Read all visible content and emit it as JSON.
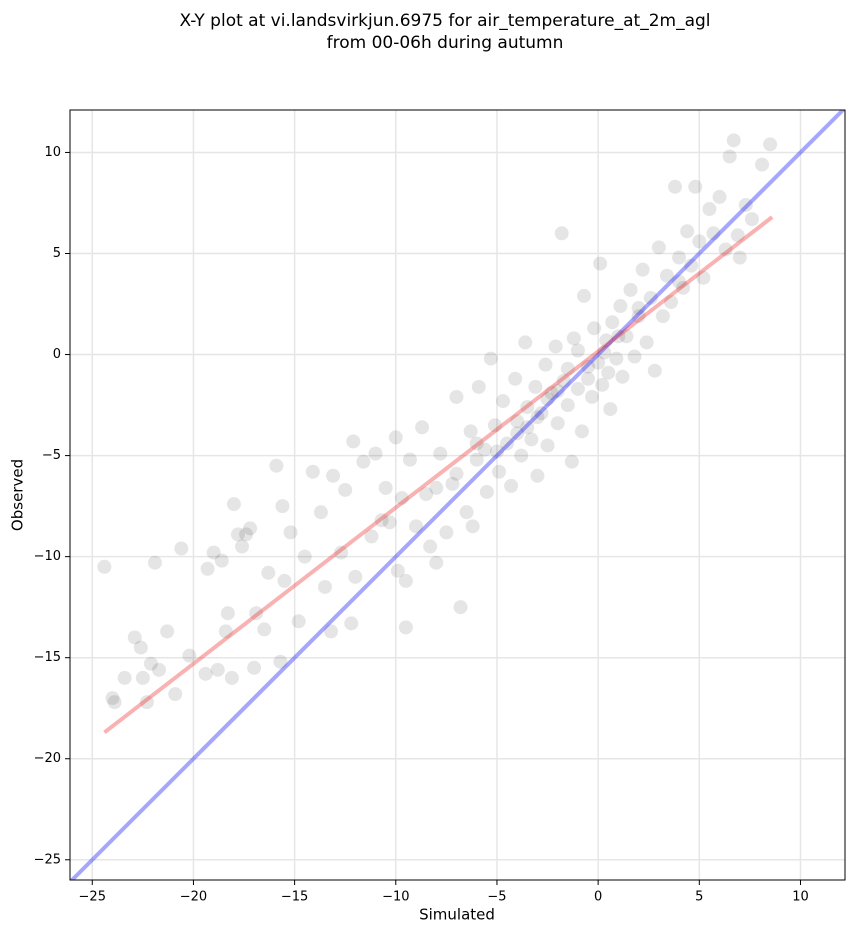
{
  "chart_data": {
    "type": "scatter",
    "title": [
      "X-Y plot at vi.landsvirkjun.6975 for air_temperature_at_2m_agl",
      "from 00-06h during autumn"
    ],
    "xlabel": "Simulated",
    "ylabel": "Observed",
    "color": "#000000",
    "x": [
      -24.4,
      -24,
      -23.9,
      -23.4,
      -22.9,
      -22.6,
      -22.5,
      -22.3,
      -22.1,
      -21.9,
      -21.7,
      -21.3,
      -20.9,
      -20.6,
      -20.2,
      -19.4,
      -19.3,
      -19,
      -18.8,
      -18.6,
      -18.4,
      -18.3,
      -18.1,
      -18,
      -17.8,
      -17.6,
      -17.4,
      -17.2,
      -17,
      -16.9,
      -16.5,
      -16.3,
      -15.9,
      -15.7,
      -15.6,
      -15.5,
      -15.2,
      -14.8,
      -14.5,
      -14.1,
      -13.7,
      -13.5,
      -13.2,
      -13.1,
      -12.7,
      -12.5,
      -12.2,
      -12.1,
      -12,
      -11.6,
      -11.2,
      -11,
      -10.7,
      -10.5,
      -10.3,
      -10,
      -9.9,
      -9.7,
      -9.5,
      -9.3,
      -9.5,
      -9,
      -8.7,
      -8.5,
      -8.3,
      -8,
      -7.8,
      -7.5,
      -7.2,
      -7,
      -6.8,
      -6.5,
      -6.3,
      -6.2,
      -6,
      -5.9,
      -5.6,
      -5.5,
      -5.3,
      -5.1,
      -4.9,
      -4.7,
      -4.5,
      -4.3,
      -4.1,
      -4,
      -3.8,
      -3.6,
      -3.5,
      -3.3,
      -3.1,
      -3,
      -2.8,
      -2.6,
      -2.5,
      -2.3,
      -2.1,
      -2,
      -1.8,
      -1.7,
      -1.5,
      -1.3,
      -1.2,
      -1,
      -0.8,
      -0.7,
      -0.5,
      -0.3,
      -0.2,
      0,
      0.1,
      0.2,
      0.4,
      0.6,
      0.7,
      0.9,
      1.1,
      1.2,
      1.4,
      1.6,
      1.8,
      2,
      2.2,
      2.4,
      2.6,
      2.8,
      3,
      3.2,
      3.4,
      3.6,
      3.8,
      4,
      4.2,
      4.4,
      4.6,
      4.8,
      5,
      5.2,
      5.5,
      5.7,
      6,
      6.3,
      6.5,
      6.7,
      6.9,
      7,
      7.3,
      7.6,
      8.1,
      8.5,
      -1,
      -0.5,
      0.3,
      -2,
      -3,
      -4,
      -5,
      1,
      2,
      0.5,
      -1.5,
      -2.5,
      -3.5,
      -6,
      -7,
      -8,
      4
    ],
    "y": [
      -10.5,
      -17,
      -17.2,
      -16,
      -14,
      -14.5,
      -16,
      -17.2,
      -15.3,
      -10.3,
      -15.6,
      -13.7,
      -16.8,
      -9.6,
      -14.9,
      -15.8,
      -10.6,
      -9.8,
      -15.6,
      -10.2,
      -13.7,
      -12.8,
      -16,
      -7.4,
      -8.9,
      -9.5,
      -8.9,
      -8.6,
      -15.5,
      -12.8,
      -13.6,
      -10.8,
      -5.5,
      -15.2,
      -7.5,
      -11.2,
      -8.8,
      -13.2,
      -10,
      -5.8,
      -7.8,
      -11.5,
      -13.7,
      -6,
      -9.8,
      -6.7,
      -13.3,
      -4.3,
      -11,
      -5.3,
      -9,
      -4.9,
      -8.2,
      -6.6,
      -8.3,
      -4.1,
      -10.7,
      -7.1,
      -11.2,
      -5.2,
      -13.5,
      -8.5,
      -3.6,
      -6.9,
      -9.5,
      -10.3,
      -4.9,
      -8.8,
      -6.4,
      -2.1,
      -12.5,
      -7.8,
      -3.8,
      -8.5,
      -5.2,
      -1.6,
      -4.7,
      -6.8,
      -0.2,
      -3.5,
      -5.8,
      -2.3,
      -4.4,
      -6.5,
      -1.2,
      -3.3,
      -5,
      0.6,
      -2.6,
      -4.2,
      -1.6,
      -6,
      -2.9,
      -0.5,
      -4.5,
      -1.9,
      0.4,
      -3.4,
      6,
      -1.3,
      -2.5,
      -5.3,
      0.8,
      -1.7,
      -3.8,
      2.9,
      -0.6,
      -2.1,
      1.3,
      -0.4,
      4.5,
      -1.5,
      0.7,
      -2.7,
      1.6,
      -0.2,
      2.4,
      -1.1,
      0.9,
      3.2,
      -0.1,
      1.9,
      4.2,
      0.6,
      2.8,
      -0.8,
      5.3,
      1.9,
      3.9,
      2.6,
      8.3,
      4.8,
      3.3,
      6.1,
      4.4,
      8.3,
      5.6,
      3.8,
      7.2,
      6,
      7.8,
      5.2,
      9.8,
      10.6,
      5.9,
      4.8,
      7.4,
      6.7,
      9.4,
      10.4,
      0.2,
      -1.2,
      0.1,
      -1.8,
      -3.1,
      -3.9,
      -4.8,
      0.9,
      2.3,
      -0.9,
      -0.7,
      -2.2,
      -3.6,
      -4.4,
      -5.9,
      -6.6,
      3.6
    ],
    "lines": [
      {
        "color": "#0000ff",
        "x": [
          -26.1,
          12.2
        ],
        "y": [
          -26.1,
          12.2
        ]
      },
      {
        "color": "#ee2222",
        "x": [
          -24.4,
          8.6
        ],
        "y": [
          -18.7,
          6.8
        ]
      }
    ],
    "xlim": [
      -26.1,
      12.2
    ],
    "ylim": [
      -26.0,
      12.1
    ],
    "xticks": [
      {
        "value": -25,
        "label": "−25"
      },
      {
        "value": -20,
        "label": "−20"
      },
      {
        "value": -15,
        "label": "−15"
      },
      {
        "value": -10,
        "label": "−10"
      },
      {
        "value": -5,
        "label": "−5"
      },
      0,
      5,
      10
    ],
    "yticks": [
      {
        "value": -25,
        "label": "−25"
      },
      {
        "value": -20,
        "label": "−20"
      },
      {
        "value": -15,
        "label": "−15"
      },
      {
        "value": -10,
        "label": "−10"
      },
      {
        "value": -5,
        "label": "−5"
      },
      0,
      5,
      10
    ],
    "grid": true
  }
}
